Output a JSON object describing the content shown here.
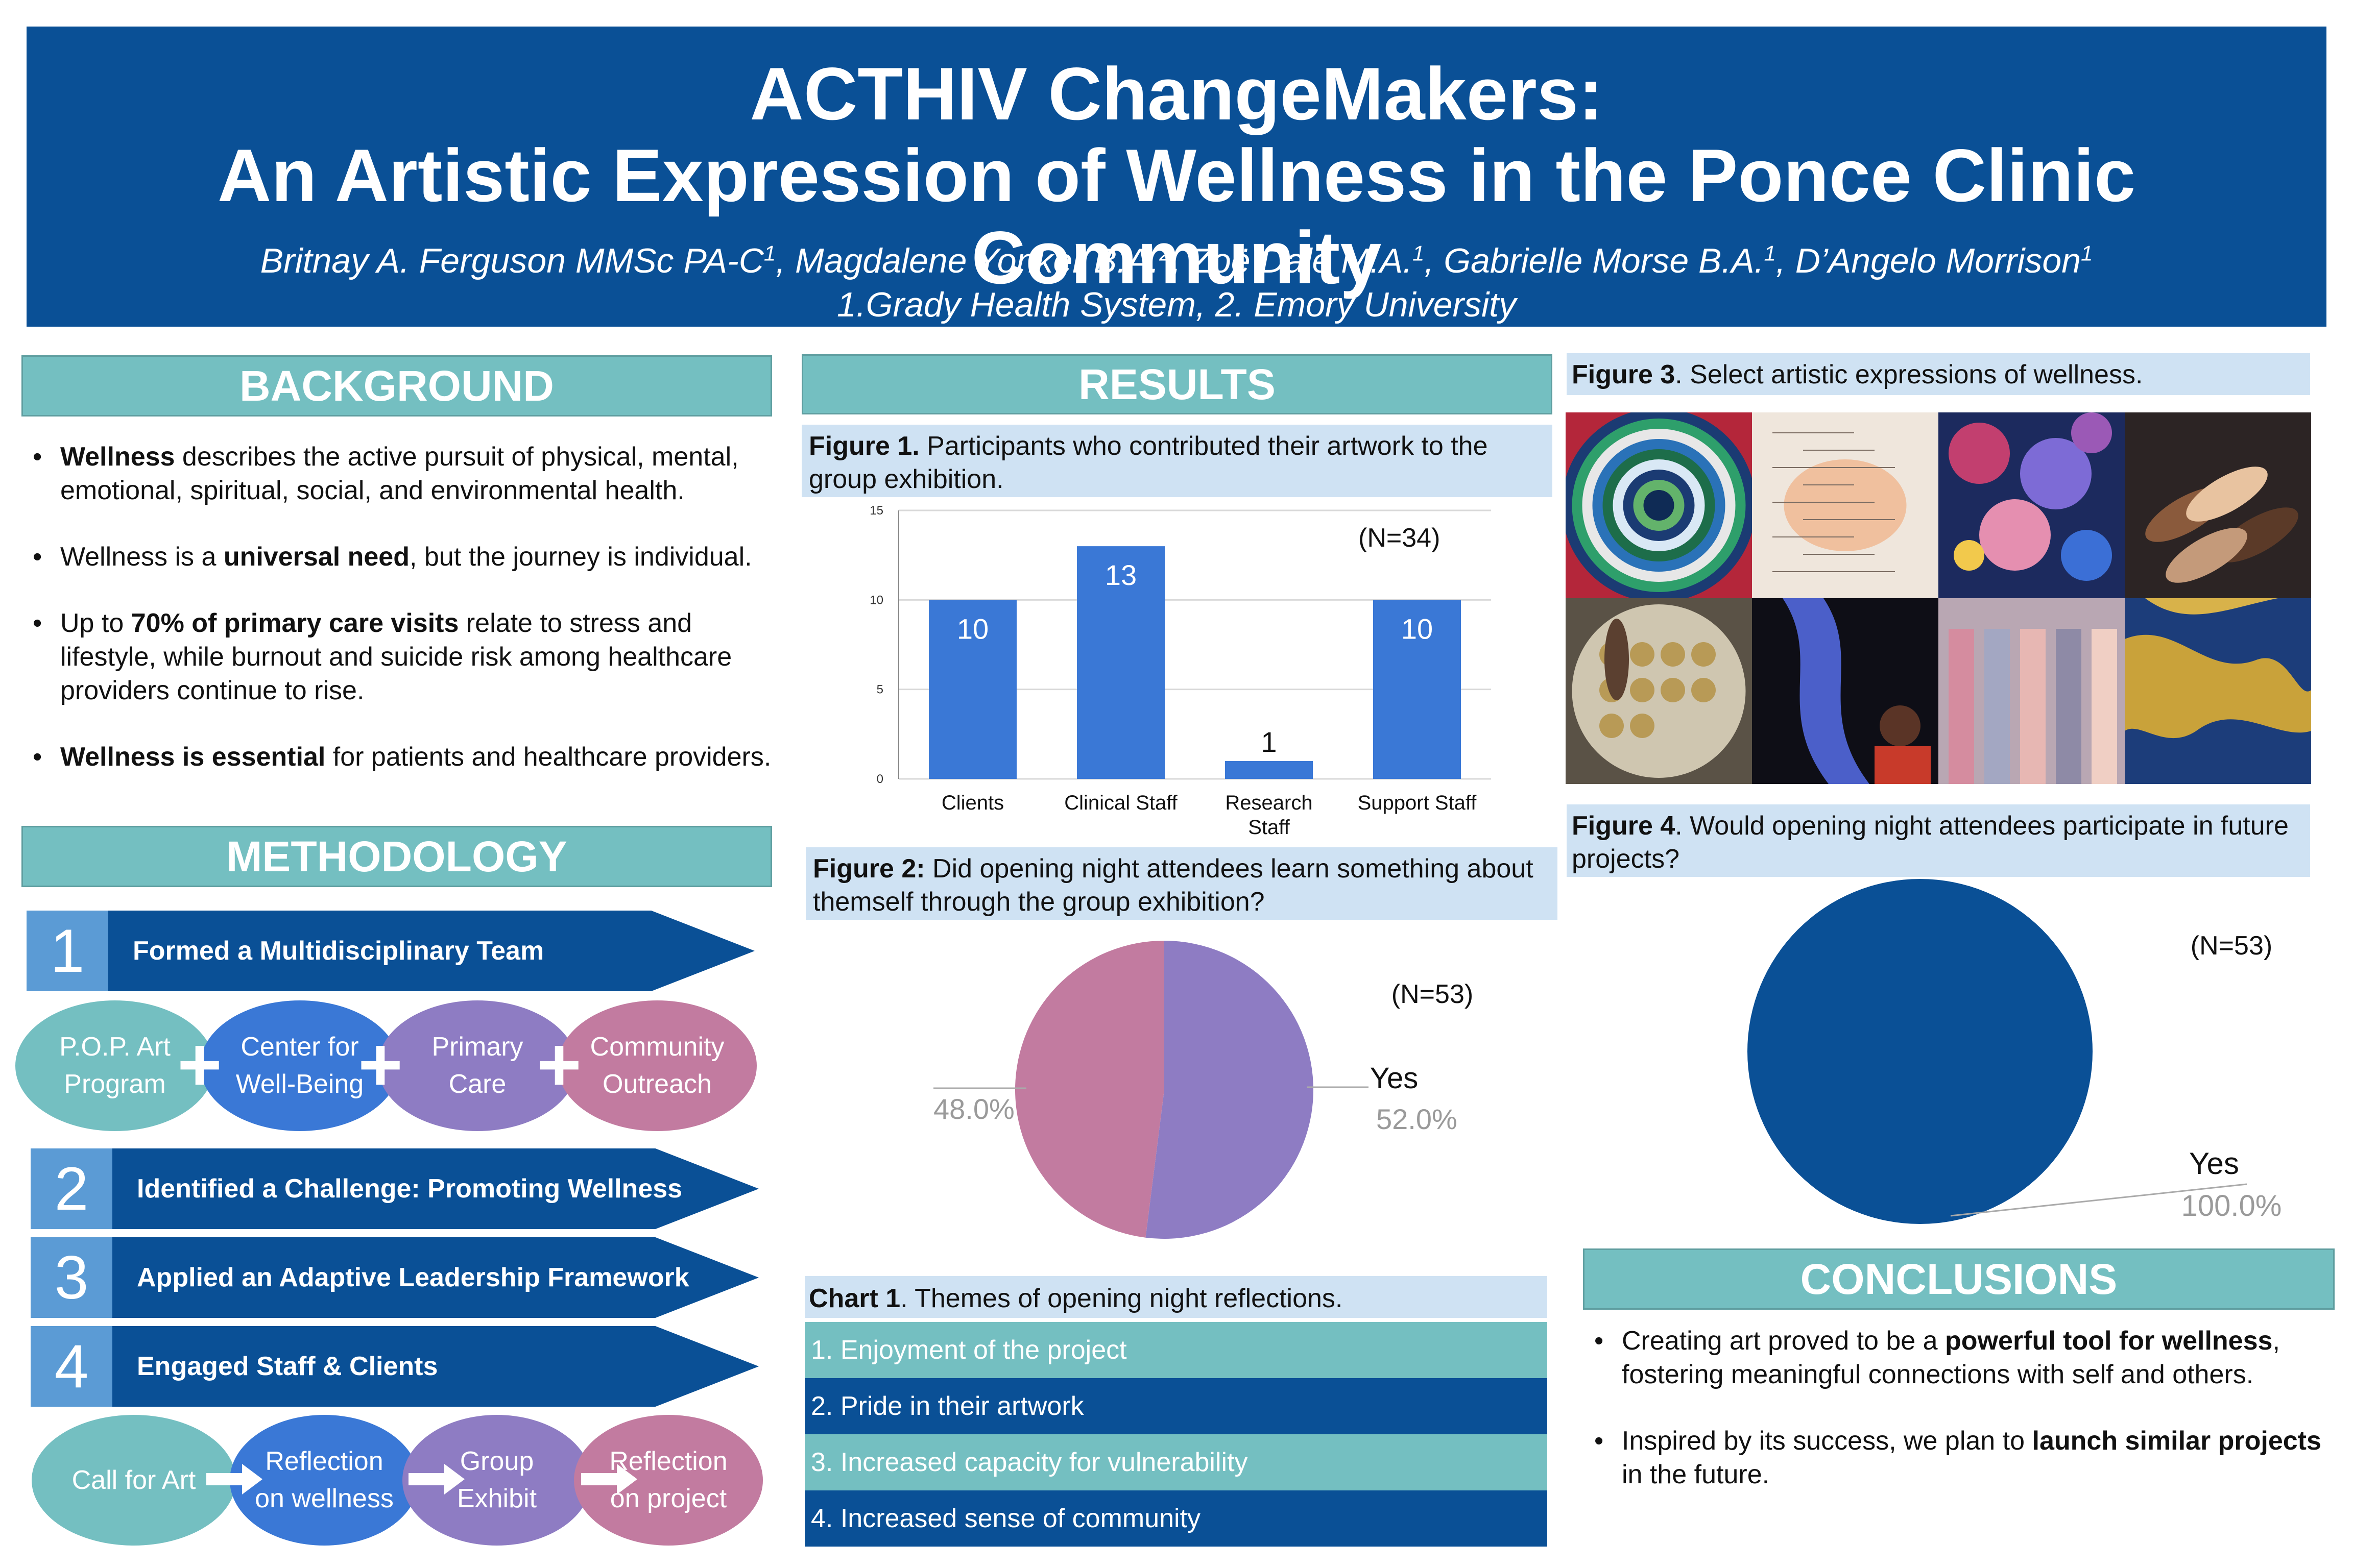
{
  "header": {
    "title_line1": "ACTHIV ChangeMakers:",
    "title_line2": "An Artistic Expression of Wellness in the Ponce Clinic Community",
    "authors": [
      {
        "name": "Britnay A. Ferguson MMSc PA-C",
        "sup": "1"
      },
      {
        "name": "Magdalene Yonker B.A.",
        "sup": "2"
      },
      {
        "name": "Zoë Dale M.A.",
        "sup": "1"
      },
      {
        "name": "Gabrielle Morse B.A.",
        "sup": "1"
      },
      {
        "name": "D’Angelo Morrison",
        "sup": "1"
      }
    ],
    "author_separator": ", ",
    "affiliations": "1.Grady Health System, 2. Emory University"
  },
  "background": {
    "heading": "BACKGROUND",
    "bullets": [
      {
        "bold": "Wellness",
        "rest": " describes the active pursuit of physical, mental, emotional, spiritual, social, and environmental health."
      },
      {
        "pre": "Wellness is a ",
        "bold": "universal need",
        "rest": ", but the journey is individual."
      },
      {
        "pre": "Up to ",
        "bold": "70% of primary care visits",
        "rest": " relate to stress and lifestyle, while burnout and suicide risk among healthcare providers continue to rise."
      },
      {
        "bold": "Wellness is essential",
        "rest": " for patients and healthcare providers."
      }
    ]
  },
  "methodology": {
    "heading": "METHODOLOGY",
    "steps": [
      {
        "num": "1",
        "label": "Formed a Multidisciplinary Team"
      },
      {
        "num": "2",
        "label": "Identified a Challenge: Promoting Wellness"
      },
      {
        "num": "3",
        "label": "Applied an Adaptive Leadership Framework"
      },
      {
        "num": "4",
        "label": "Engaged Staff & Clients"
      }
    ],
    "team": [
      {
        "line1": "P.O.P. Art",
        "line2": "Program",
        "color": "#74bfc1"
      },
      {
        "line1": "Center for",
        "line2": "Well-Being",
        "color": "#3a78d6"
      },
      {
        "line1": "Primary",
        "line2": "Care",
        "color": "#8e7cc3"
      },
      {
        "line1": "Community",
        "line2": "Outreach",
        "color": "#c27ba0"
      }
    ],
    "process": [
      {
        "line1": "Call for Art",
        "line2": "",
        "color": "#74bfc1"
      },
      {
        "line1": "Reflection",
        "line2": "on wellness",
        "color": "#3a78d6"
      },
      {
        "line1": "Group",
        "line2": "Exhibit",
        "color": "#8e7cc3"
      },
      {
        "line1": "Reflection",
        "line2": "on project",
        "color": "#c27ba0"
      }
    ],
    "plus_symbol": "+"
  },
  "results": {
    "heading": "RESULTS",
    "fig1_caption_bold": "Figure 1.",
    "fig1_caption": " Participants who contributed their artwork to the group exhibition.",
    "fig1_n": "(N=34)",
    "fig2_caption_bold": "Figure 2:",
    "fig2_caption": " Did opening night attendees learn something about themself through the group exhibition?",
    "fig2_n": "(N=53)",
    "fig2_yes_label": "Yes",
    "fig2_yes_pct": "52.0%",
    "fig2_other_pct": "48.0%",
    "chart1_caption_bold": "Chart 1",
    "chart1_caption": ". Themes of opening night reflections.",
    "themes": [
      {
        "text": "1.  Enjoyment of the project",
        "color": "#74bfc1"
      },
      {
        "text": "2. Pride in their artwork",
        "color": "#0a5096"
      },
      {
        "text": "3. Increased capacity for vulnerability",
        "color": "#74bfc1"
      },
      {
        "text": "4. Increased sense of community",
        "color": "#0a5096"
      }
    ]
  },
  "right": {
    "fig3_caption_bold": "Figure 3",
    "fig3_caption": ". Select artistic expressions of wellness.",
    "fig4_caption_bold": "Figure 4",
    "fig4_caption": ". Would opening night attendees participate in future projects?",
    "fig4_n": "(N=53)",
    "fig4_yes_label": "Yes",
    "fig4_yes_pct": "100.0%",
    "artworks": [
      {
        "name": "concentric-circles-painting-icon"
      },
      {
        "name": "handwritten-text-artwork-icon"
      },
      {
        "name": "colorful-textured-sculpture-icon"
      },
      {
        "name": "joined-hands-photo-icon"
      },
      {
        "name": "pressed-flowers-dish-icon"
      },
      {
        "name": "abstract-figure-photo-icon"
      },
      {
        "name": "pastel-stripes-painting-icon"
      },
      {
        "name": "blue-gold-marbled-painting-icon"
      }
    ]
  },
  "conclusions": {
    "heading": "CONCLUSIONS",
    "bullets": [
      {
        "pre": "Creating art proved to be a ",
        "bold": "powerful tool  for wellness",
        "rest": ", fostering meaningful connections with self and others."
      },
      {
        "pre": "Inspired by its success, we plan to ",
        "bold": "launch similar projects",
        "rest": " in the future."
      }
    ]
  },
  "chart_data": [
    {
      "type": "bar",
      "categories": [
        "Clients",
        "Clinical Staff",
        "Research Staff",
        "Support Staff"
      ],
      "values": [
        10,
        13,
        1,
        10
      ],
      "ylim": [
        0,
        15
      ],
      "yticks": [
        0,
        5,
        10,
        15
      ],
      "bar_color": "#3a78d6",
      "grid": true
    },
    {
      "type": "pie",
      "labels": [
        "Yes",
        ""
      ],
      "values": [
        52.0,
        48.0
      ],
      "colors": [
        "#8e7cc3",
        "#c27ba0"
      ]
    },
    {
      "type": "pie",
      "labels": [
        "Yes"
      ],
      "values": [
        100.0
      ],
      "colors": [
        "#0a5096"
      ]
    }
  ]
}
